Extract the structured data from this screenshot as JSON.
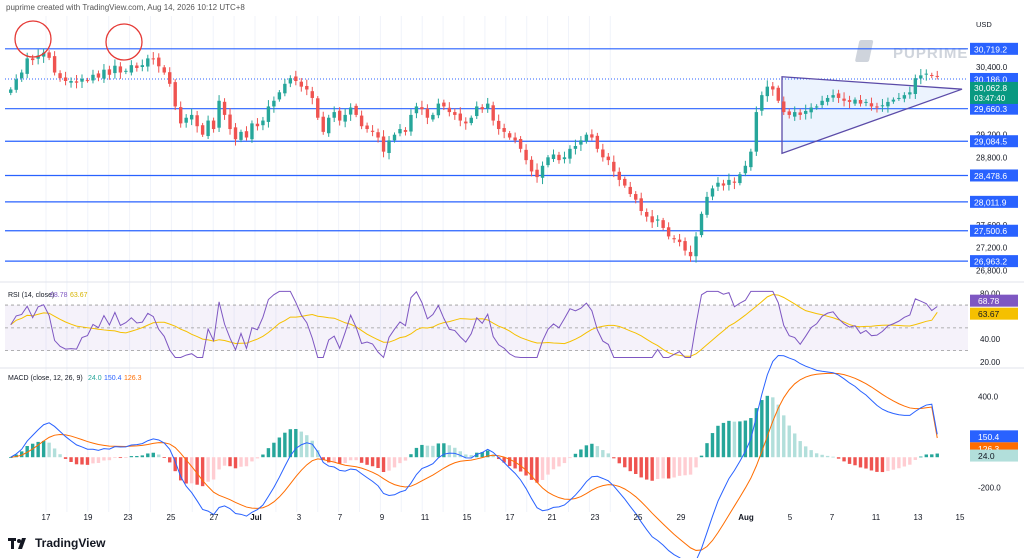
{
  "header": {
    "text": "puprime created with TradingView.com, Aug 14, 2026 10:12 UTC+8"
  },
  "watermark": {
    "text": "PUPRIME"
  },
  "footer": {
    "brand": "TradingView"
  },
  "colors": {
    "up": "#26a69a",
    "down": "#ef5350",
    "level": "#2962ff",
    "triangle": "#5b4ba8",
    "rsi": "#7e57c2",
    "rsi_ma": "#f5c000",
    "macd": "#2962ff",
    "signal": "#ff6d00"
  },
  "chart_data": [
    {
      "type": "candlestick",
      "currency": "USD",
      "x_ticks": [
        "17",
        "19",
        "21",
        "23",
        "25",
        "27",
        "Jul",
        "3",
        "5",
        "7",
        "9",
        "11",
        "13",
        "15",
        "17",
        "19",
        "21",
        "23",
        "25",
        "27",
        "29",
        "Aug",
        "5",
        "7",
        "9",
        "11",
        "13",
        "15"
      ],
      "x_tick_labels": [
        "17",
        "19",
        "23",
        "25",
        "27",
        "Jul",
        "3",
        "7",
        "9",
        "11",
        "15",
        "17",
        "21",
        "23",
        "25",
        "29",
        "Aug",
        "5",
        "7",
        "11",
        "13",
        "15"
      ],
      "y_ticks": [
        "30,400.0",
        "29,200.0",
        "28,800.0",
        "27,600.0",
        "27,200.0",
        "26,800.0"
      ],
      "ylim": [
        26700,
        31300
      ],
      "levels": [
        {
          "value": 30719.2,
          "label": "30,719.2"
        },
        {
          "value": 30186.0,
          "label": "30,186.0"
        },
        {
          "value": 29660.3,
          "label": "29,660.3"
        },
        {
          "value": 29084.5,
          "label": "29,084.5"
        },
        {
          "value": 28478.6,
          "label": "28,478.6"
        },
        {
          "value": 28011.9,
          "label": "28,011.9"
        },
        {
          "value": 27500.6,
          "label": "27,500.6"
        },
        {
          "value": 26963.2,
          "label": "26,963.2"
        }
      ],
      "last_price": {
        "value": 30062.8,
        "label": "30,062.8",
        "countdown": "03:47:40"
      },
      "closes": [
        30000,
        30180,
        30300,
        30550,
        30520,
        30600,
        30650,
        30560,
        30300,
        30200,
        30150,
        30150,
        30120,
        30190,
        30160,
        30260,
        30210,
        30350,
        30260,
        30420,
        30300,
        30330,
        30430,
        30380,
        30430,
        30550,
        30540,
        30410,
        30300,
        30100,
        29700,
        29400,
        29500,
        29550,
        29350,
        29200,
        29450,
        29300,
        29800,
        29550,
        29300,
        29120,
        29250,
        29150,
        29400,
        29350,
        29450,
        29700,
        29800,
        29950,
        30100,
        30200,
        30150,
        30050,
        30000,
        29850,
        29500,
        29250,
        29500,
        29600,
        29450,
        29550,
        29680,
        29550,
        29350,
        29300,
        29250,
        29150,
        28900,
        29100,
        29200,
        29300,
        29250,
        29550,
        29700,
        29650,
        29500,
        29550,
        29750,
        29700,
        29600,
        29550,
        29450,
        29400,
        29500,
        29700,
        29650,
        29750,
        29450,
        29300,
        29250,
        29150,
        29100,
        28950,
        28750,
        28550,
        28450,
        28650,
        28800,
        28850,
        28750,
        28800,
        28950,
        29000,
        29100,
        29200,
        29150,
        28950,
        28800,
        28750,
        28550,
        28400,
        28300,
        28150,
        28050,
        27850,
        27750,
        27650,
        27700,
        27550,
        27400,
        27350,
        27300,
        27150,
        27050,
        27400,
        27800,
        28100,
        28250,
        28350,
        28300,
        28400,
        28350,
        28500,
        28650,
        28900,
        29600,
        29900,
        30050,
        30000,
        29800,
        29600,
        29550,
        29600,
        29550,
        29620,
        29680,
        29700,
        29800,
        29850,
        29900,
        29850,
        29800,
        29780,
        29820,
        29750,
        29780,
        29700,
        29680,
        29720,
        29780,
        29820,
        29850,
        29900,
        29950,
        30200,
        30250,
        30280,
        30240,
        30230
      ],
      "triangle": {
        "apex_value": 30005,
        "upper_start": 30225,
        "lower_start": 28870
      }
    },
    {
      "type": "line",
      "title": "RSI (14, close)",
      "series": [
        {
          "name": "RSI",
          "last": 68.78
        },
        {
          "name": "RSI-based MA",
          "last": 63.67
        }
      ],
      "value_labels": [
        "68.78",
        "63.67"
      ],
      "y_ticks": [
        "80.00",
        "40.00",
        "20.00"
      ],
      "bands": [
        70,
        50,
        30
      ],
      "ylim": [
        20,
        85
      ]
    },
    {
      "type": "line",
      "title": "MACD (close, 12, 26, 9)",
      "params": [
        "24.0",
        "150.4",
        "126.3"
      ],
      "series": [
        {
          "name": "MACD",
          "last": 150.4
        },
        {
          "name": "Signal",
          "last": 126.3
        },
        {
          "name": "Histogram",
          "last": 24.0
        }
      ],
      "value_labels": [
        "150.4",
        "126.3",
        "24.0"
      ],
      "y_ticks": [
        "400.0",
        "-200.0"
      ],
      "ylim": [
        -360,
        560
      ]
    }
  ]
}
